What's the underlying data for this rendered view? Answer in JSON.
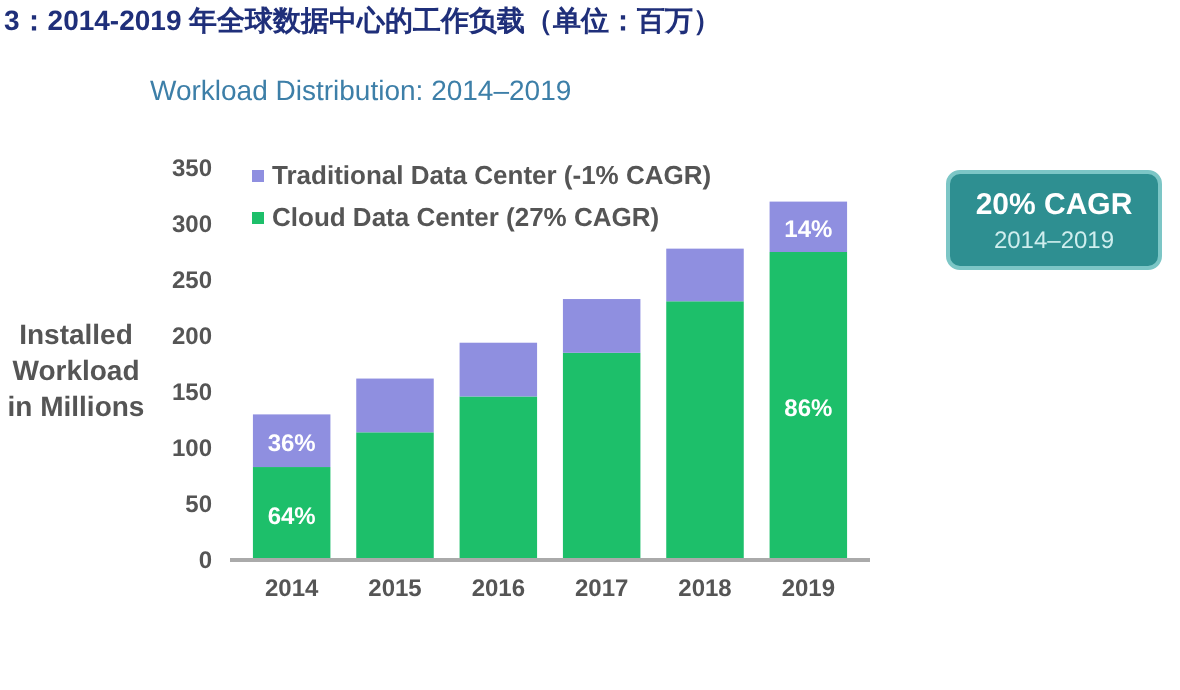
{
  "chart_data": {
    "type": "bar",
    "title": "3：2014-2019 年全球数据中心的工作负载（单位：百万）",
    "subtitle": "Workload Distribution: 2014–2019",
    "ylabel": "Installed Workload in Millions",
    "categories": [
      "2014",
      "2015",
      "2016",
      "2017",
      "2018",
      "2019"
    ],
    "stacked": true,
    "ylim": [
      0,
      350
    ],
    "yticks": [
      0,
      50,
      100,
      150,
      200,
      250,
      300,
      350
    ],
    "grid": false,
    "legend": "top left",
    "series": [
      {
        "name": "Cloud Data Center (27% CAGR)",
        "color": "#1dbf6a",
        "values": [
          83,
          114,
          146,
          185,
          231,
          275
        ]
      },
      {
        "name": "Traditional Data Center (-1% CAGR)",
        "color": "#8f8fe0",
        "values": [
          47,
          48,
          48,
          48,
          47,
          45
        ]
      }
    ],
    "annotations": [
      "64%",
      "36%",
      "86%",
      "14%",
      "20% CAGR",
      "2014–2019"
    ]
  }
}
